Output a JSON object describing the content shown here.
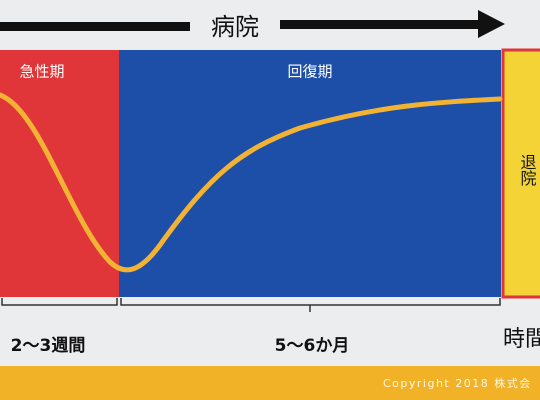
{
  "header": {
    "title": "病院"
  },
  "phases": [
    {
      "label": "急性期"
    },
    {
      "label": "回復期"
    },
    {
      "label": "退院"
    }
  ],
  "durations": [
    {
      "label": "2～3週間"
    },
    {
      "label": "5～6か月"
    }
  ],
  "axis_label": "時間",
  "footer": {
    "copyright": "Copyright 2018 株式会"
  }
}
